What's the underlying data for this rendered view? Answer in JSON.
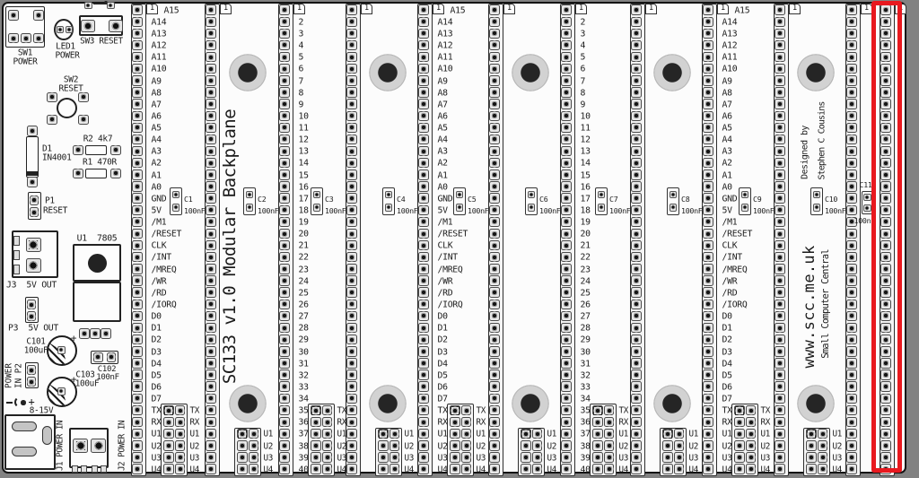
{
  "board": {
    "title_vertical": "SC133 v1.0 Modular Backplane",
    "designed_by_line1": "Designed by",
    "designed_by_line2": "Stephen C Cousins",
    "website": "www.scc.me.uk",
    "website_sub": "Small Computer Central"
  },
  "pins": {
    "pin1_marker": "1",
    "names": [
      "A15",
      "A14",
      "A13",
      "A12",
      "A11",
      "A10",
      "A9",
      "A8",
      "A7",
      "A6",
      "A5",
      "A4",
      "A3",
      "A2",
      "A1",
      "A0",
      "GND",
      "5V",
      "/M1",
      "/RESET",
      "CLK",
      "/INT",
      "/MREQ",
      "/WR",
      "/RD",
      "/IORQ",
      "D0",
      "D1",
      "D2",
      "D3",
      "D4",
      "D5",
      "D6",
      "D7",
      "TX",
      "RX",
      "U1",
      "U2",
      "U3",
      "U4"
    ],
    "numbers": [
      "1",
      "2",
      "3",
      "4",
      "5",
      "6",
      "7",
      "8",
      "9",
      "10",
      "11",
      "12",
      "13",
      "14",
      "15",
      "16",
      "17",
      "18",
      "19",
      "20",
      "21",
      "22",
      "23",
      "24",
      "25",
      "26",
      "27",
      "28",
      "29",
      "30",
      "31",
      "32",
      "33",
      "34",
      "35",
      "36",
      "37",
      "38",
      "39",
      "40"
    ]
  },
  "blocks": {
    "io_labels": [
      "TX",
      "RX",
      "U1",
      "U2",
      "U3",
      "U4"
    ],
    "user_labels": [
      "U1",
      "U2",
      "U3",
      "U4"
    ]
  },
  "capacitors": [
    {
      "ref": "C1",
      "value": "100nF"
    },
    {
      "ref": "C2",
      "value": "100nF"
    },
    {
      "ref": "C3",
      "value": "100nF"
    },
    {
      "ref": "C4",
      "value": "100nF"
    },
    {
      "ref": "C5",
      "value": "100nF"
    },
    {
      "ref": "C6",
      "value": "100nF"
    },
    {
      "ref": "C7",
      "value": "100nF"
    },
    {
      "ref": "C8",
      "value": "100nF"
    },
    {
      "ref": "C9",
      "value": "100nF"
    },
    {
      "ref": "C10",
      "value": "100nF"
    },
    {
      "ref": "C11",
      "value": "100nF"
    }
  ],
  "gaps": [
    {
      "type": "names",
      "cap": 0,
      "block": "io"
    },
    {
      "type": "holes",
      "cap": 1,
      "block": "user",
      "text": "title"
    },
    {
      "type": "numbers",
      "cap": 2,
      "block": "io"
    },
    {
      "type": "holes",
      "cap": 3,
      "block": "user"
    },
    {
      "type": "names",
      "cap": 4,
      "block": "io"
    },
    {
      "type": "holes",
      "cap": 5,
      "block": "user"
    },
    {
      "type": "numbers",
      "cap": 6,
      "block": "io"
    },
    {
      "type": "holes",
      "cap": 7,
      "block": "user"
    },
    {
      "type": "names",
      "cap": 8,
      "block": "io"
    },
    {
      "type": "holes",
      "cap": 9,
      "block": "user",
      "text": "credits"
    },
    {
      "type": "cap-only",
      "cap": 10
    }
  ],
  "power": {
    "sw1": {
      "ref": "SW1",
      "label": "POWER"
    },
    "led1": {
      "ref": "LED1",
      "label": "POWER"
    },
    "sw3": {
      "label": "SW3 RESET"
    },
    "sw2": {
      "ref": "SW2",
      "label": "RESET"
    },
    "d1": {
      "ref": "D1",
      "value": "IN4001"
    },
    "r2": {
      "label": "R2 4k7"
    },
    "r1": {
      "label": "R1 470R"
    },
    "p1": {
      "ref": "P1",
      "label": "RESET"
    },
    "j3": {
      "label": "J3  5V OUT"
    },
    "u1": {
      "label": "U1  7805"
    },
    "p3": {
      "label": "P3  5V OUT"
    },
    "c101": {
      "ref": "C101",
      "value": "100uF"
    },
    "c102": {
      "ref": "C102",
      "value": "100nF"
    },
    "c103": {
      "ref": "C103",
      "value": "100uF"
    },
    "p2": {
      "label": "POWER\nIN P2"
    },
    "input_range": "8-15V",
    "plus": "+",
    "j1": {
      "label": "J1 POWER IN"
    },
    "j2": {
      "label": "J2 POWER IN"
    }
  },
  "highlight": {
    "color": "#e8191f"
  }
}
